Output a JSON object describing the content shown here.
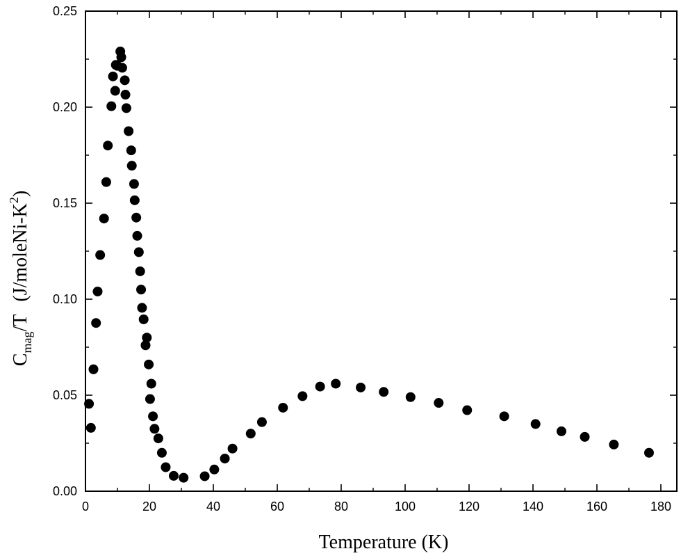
{
  "chart_data": {
    "type": "scatter",
    "xlabel": "Temperature (K)",
    "ylabel": {
      "main": "C",
      "subscript": "mag",
      "after_subscript": "/T",
      "unit_before_sup": "(J/moleNi-K",
      "superscript": "2",
      "unit_after_sup": ")"
    },
    "xlim": [
      0,
      185
    ],
    "ylim": [
      0,
      0.25
    ],
    "xticks": [
      0,
      20,
      40,
      60,
      80,
      100,
      120,
      140,
      160,
      180
    ],
    "yticks": [
      0.0,
      0.05,
      0.1,
      0.15,
      0.2,
      0.25
    ],
    "xtick_labels": [
      "0",
      "20",
      "40",
      "60",
      "80",
      "100",
      "120",
      "140",
      "160",
      "180"
    ],
    "ytick_labels": [
      "0.00",
      "0.05",
      "0.10",
      "0.15",
      "0.20",
      "0.25"
    ],
    "grid": false,
    "legend": "none",
    "marker_color": "#000000",
    "x": [
      1.1,
      1.7,
      2.5,
      3.3,
      3.8,
      4.6,
      5.8,
      6.5,
      7.0,
      8.1,
      8.6,
      9.3,
      9.5,
      10.0,
      10.9,
      11.2,
      11.5,
      12.3,
      12.5,
      12.8,
      13.5,
      14.3,
      14.5,
      15.2,
      15.4,
      15.9,
      16.2,
      16.7,
      17.1,
      17.4,
      17.7,
      18.2,
      18.8,
      19.2,
      19.8,
      20.2,
      20.6,
      21.1,
      21.6,
      22.8,
      23.9,
      25.1,
      27.6,
      30.7,
      37.3,
      40.3,
      43.6,
      46.0,
      51.7,
      55.2,
      61.8,
      67.9,
      73.4,
      78.3,
      86.1,
      93.3,
      101.7,
      110.5,
      119.4,
      131.0,
      140.8,
      148.9,
      156.2,
      165.3,
      176.3
    ],
    "y": [
      0.0455,
      0.033,
      0.0635,
      0.0876,
      0.104,
      0.123,
      0.142,
      0.161,
      0.18,
      0.2005,
      0.216,
      0.2085,
      0.222,
      0.2215,
      0.229,
      0.226,
      0.2205,
      0.214,
      0.2065,
      0.1995,
      0.1875,
      0.1775,
      0.1695,
      0.16,
      0.1515,
      0.1425,
      0.133,
      0.1245,
      0.1145,
      0.105,
      0.0955,
      0.0895,
      0.076,
      0.08,
      0.066,
      0.048,
      0.056,
      0.039,
      0.0325,
      0.0275,
      0.02,
      0.0125,
      0.008,
      0.007,
      0.0078,
      0.0113,
      0.017,
      0.0222,
      0.03,
      0.036,
      0.0435,
      0.0495,
      0.0545,
      0.056,
      0.054,
      0.0517,
      0.049,
      0.046,
      0.0422,
      0.039,
      0.035,
      0.0312,
      0.0283,
      0.0243,
      0.02
    ]
  }
}
